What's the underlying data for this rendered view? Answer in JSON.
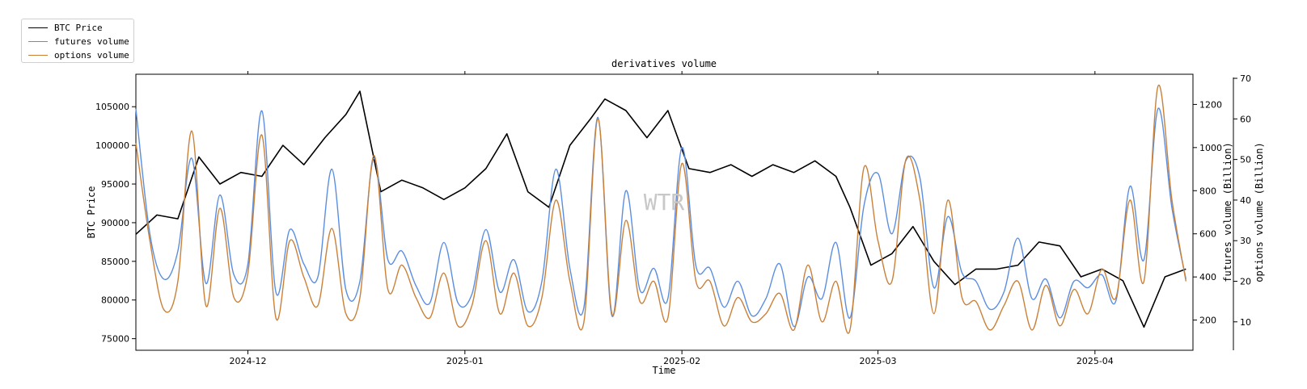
{
  "chart_data": {
    "type": "line",
    "title": "derivatives volume",
    "xlabel": "Time",
    "ylabel_left": "BTC Price",
    "ylabel_right1": "futures volume (Billion)",
    "ylabel_right2": "options volume (Billion)",
    "watermark": "WTR",
    "legend_position": "top-left (outside plot)",
    "grid": false,
    "x_ticks": [
      "2024-12",
      "2025-01",
      "2025-02",
      "2025-03",
      "2025-04"
    ],
    "x_range": [
      "2024-11-15",
      "2025-04-15"
    ],
    "y_left_ticks": [
      75000,
      80000,
      85000,
      90000,
      95000,
      100000,
      105000
    ],
    "y_left_range": [
      73500,
      109200
    ],
    "y_right1_ticks": [
      200,
      400,
      600,
      800,
      1000,
      1200
    ],
    "y_right1_range": [
      60,
      1340
    ],
    "y_right2_ticks": [
      10,
      20,
      30,
      40,
      50,
      60,
      70
    ],
    "y_right2_range": [
      3,
      71
    ],
    "series": [
      {
        "name": "BTC Price",
        "axis": "left",
        "color": "#000000",
        "x": [
          "2024-11-15",
          "2024-11-18",
          "2024-11-21",
          "2024-11-24",
          "2024-11-27",
          "2024-11-30",
          "2024-12-03",
          "2024-12-06",
          "2024-12-09",
          "2024-12-12",
          "2024-12-15",
          "2024-12-17",
          "2024-12-20",
          "2024-12-23",
          "2024-12-26",
          "2024-12-29",
          "2025-01-01",
          "2025-01-04",
          "2025-01-07",
          "2025-01-10",
          "2025-01-13",
          "2025-01-16",
          "2025-01-19",
          "2025-01-21",
          "2025-01-24",
          "2025-01-27",
          "2025-01-30",
          "2025-02-02",
          "2025-02-05",
          "2025-02-08",
          "2025-02-11",
          "2025-02-14",
          "2025-02-17",
          "2025-02-20",
          "2025-02-23",
          "2025-02-25",
          "2025-02-28",
          "2025-03-03",
          "2025-03-06",
          "2025-03-09",
          "2025-03-12",
          "2025-03-15",
          "2025-03-18",
          "2025-03-21",
          "2025-03-24",
          "2025-03-27",
          "2025-03-30",
          "2025-04-02",
          "2025-04-05",
          "2025-04-08",
          "2025-04-11",
          "2025-04-14"
        ],
        "values": [
          88500,
          91000,
          90500,
          98500,
          95000,
          96500,
          96000,
          100000,
          97500,
          101000,
          104000,
          107000,
          94000,
          95500,
          94500,
          93000,
          94500,
          97000,
          101500,
          94000,
          92000,
          100000,
          103500,
          106000,
          104500,
          101000,
          104500,
          97000,
          96500,
          97500,
          96000,
          97500,
          96500,
          98000,
          96000,
          92000,
          84500,
          86000,
          89500,
          85000,
          82000,
          84000,
          84000,
          84500,
          87500,
          87000,
          83000,
          84000,
          82500,
          76500,
          83000,
          84000
        ]
      },
      {
        "name": "futures volume",
        "axis": "right1",
        "color": "#5b8ee0",
        "x": [
          "2024-11-15",
          "2024-11-17",
          "2024-11-19",
          "2024-11-21",
          "2024-11-23",
          "2024-11-25",
          "2024-11-27",
          "2024-11-29",
          "2024-12-01",
          "2024-12-03",
          "2024-12-05",
          "2024-12-07",
          "2024-12-09",
          "2024-12-11",
          "2024-12-13",
          "2024-12-15",
          "2024-12-17",
          "2024-12-19",
          "2024-12-21",
          "2024-12-23",
          "2024-12-25",
          "2024-12-27",
          "2024-12-29",
          "2024-12-31",
          "2025-01-02",
          "2025-01-04",
          "2025-01-06",
          "2025-01-08",
          "2025-01-10",
          "2025-01-12",
          "2025-01-14",
          "2025-01-16",
          "2025-01-18",
          "2025-01-20",
          "2025-01-22",
          "2025-01-24",
          "2025-01-26",
          "2025-01-28",
          "2025-01-30",
          "2025-02-01",
          "2025-02-03",
          "2025-02-05",
          "2025-02-07",
          "2025-02-09",
          "2025-02-11",
          "2025-02-13",
          "2025-02-15",
          "2025-02-17",
          "2025-02-19",
          "2025-02-21",
          "2025-02-23",
          "2025-02-25",
          "2025-02-27",
          "2025-03-01",
          "2025-03-03",
          "2025-03-05",
          "2025-03-07",
          "2025-03-09",
          "2025-03-11",
          "2025-03-13",
          "2025-03-15",
          "2025-03-17",
          "2025-03-19",
          "2025-03-21",
          "2025-03-23",
          "2025-03-25",
          "2025-03-27",
          "2025-03-29",
          "2025-03-31",
          "2025-04-02",
          "2025-04-04",
          "2025-04-06",
          "2025-04-08",
          "2025-04-10",
          "2025-04-12",
          "2025-04-14"
        ],
        "values": [
          1180,
          600,
          390,
          520,
          950,
          370,
          780,
          410,
          460,
          1170,
          330,
          620,
          460,
          400,
          900,
          340,
          380,
          950,
          480,
          520,
          360,
          280,
          560,
          280,
          320,
          620,
          330,
          480,
          240,
          380,
          900,
          440,
          260,
          1140,
          220,
          800,
          340,
          440,
          300,
          1000,
          450,
          440,
          260,
          380,
          220,
          300,
          460,
          170,
          400,
          300,
          560,
          210,
          730,
          880,
          600,
          940,
          860,
          350,
          680,
          420,
          380,
          250,
          330,
          580,
          300,
          390,
          210,
          380,
          350,
          410,
          290,
          820,
          480,
          1180,
          720,
          390
        ]
      },
      {
        "name": "options volume",
        "axis": "right2",
        "color": "#c9813a",
        "x": [
          "2024-11-15",
          "2024-11-17",
          "2024-11-19",
          "2024-11-21",
          "2024-11-23",
          "2024-11-25",
          "2024-11-27",
          "2024-11-29",
          "2024-12-01",
          "2024-12-03",
          "2024-12-05",
          "2024-12-07",
          "2024-12-09",
          "2024-12-11",
          "2024-12-13",
          "2024-12-15",
          "2024-12-17",
          "2024-12-19",
          "2024-12-21",
          "2024-12-23",
          "2024-12-25",
          "2024-12-27",
          "2024-12-29",
          "2024-12-31",
          "2025-01-02",
          "2025-01-04",
          "2025-01-06",
          "2025-01-08",
          "2025-01-10",
          "2025-01-12",
          "2025-01-14",
          "2025-01-16",
          "2025-01-18",
          "2025-01-20",
          "2025-01-22",
          "2025-01-24",
          "2025-01-26",
          "2025-01-28",
          "2025-01-30",
          "2025-02-01",
          "2025-02-03",
          "2025-02-05",
          "2025-02-07",
          "2025-02-09",
          "2025-02-11",
          "2025-02-13",
          "2025-02-15",
          "2025-02-17",
          "2025-02-19",
          "2025-02-21",
          "2025-02-23",
          "2025-02-25",
          "2025-02-27",
          "2025-03-01",
          "2025-03-03",
          "2025-03-05",
          "2025-03-07",
          "2025-03-09",
          "2025-03-11",
          "2025-03-13",
          "2025-03-15",
          "2025-03-17",
          "2025-03-19",
          "2025-03-21",
          "2025-03-23",
          "2025-03-25",
          "2025-03-27",
          "2025-03-29",
          "2025-03-31",
          "2025-04-02",
          "2025-04-04",
          "2025-04-06",
          "2025-04-08",
          "2025-04-10",
          "2025-04-12",
          "2025-04-14"
        ],
        "values": [
          54,
          30,
          13,
          20,
          57,
          14,
          38,
          16,
          22,
          56,
          11,
          30,
          21,
          14,
          33,
          12,
          16,
          51,
          18,
          24,
          16,
          11,
          22,
          9,
          14,
          30,
          12,
          22,
          9,
          16,
          40,
          20,
          10,
          60,
          12,
          35,
          15,
          20,
          11,
          49,
          20,
          20,
          9,
          16,
          10,
          12,
          17,
          8,
          24,
          10,
          20,
          8,
          48,
          30,
          20,
          50,
          40,
          12,
          40,
          16,
          15,
          8,
          14,
          20,
          8,
          19,
          9,
          18,
          12,
          23,
          16,
          40,
          20,
          68,
          40,
          20
        ]
      }
    ]
  }
}
